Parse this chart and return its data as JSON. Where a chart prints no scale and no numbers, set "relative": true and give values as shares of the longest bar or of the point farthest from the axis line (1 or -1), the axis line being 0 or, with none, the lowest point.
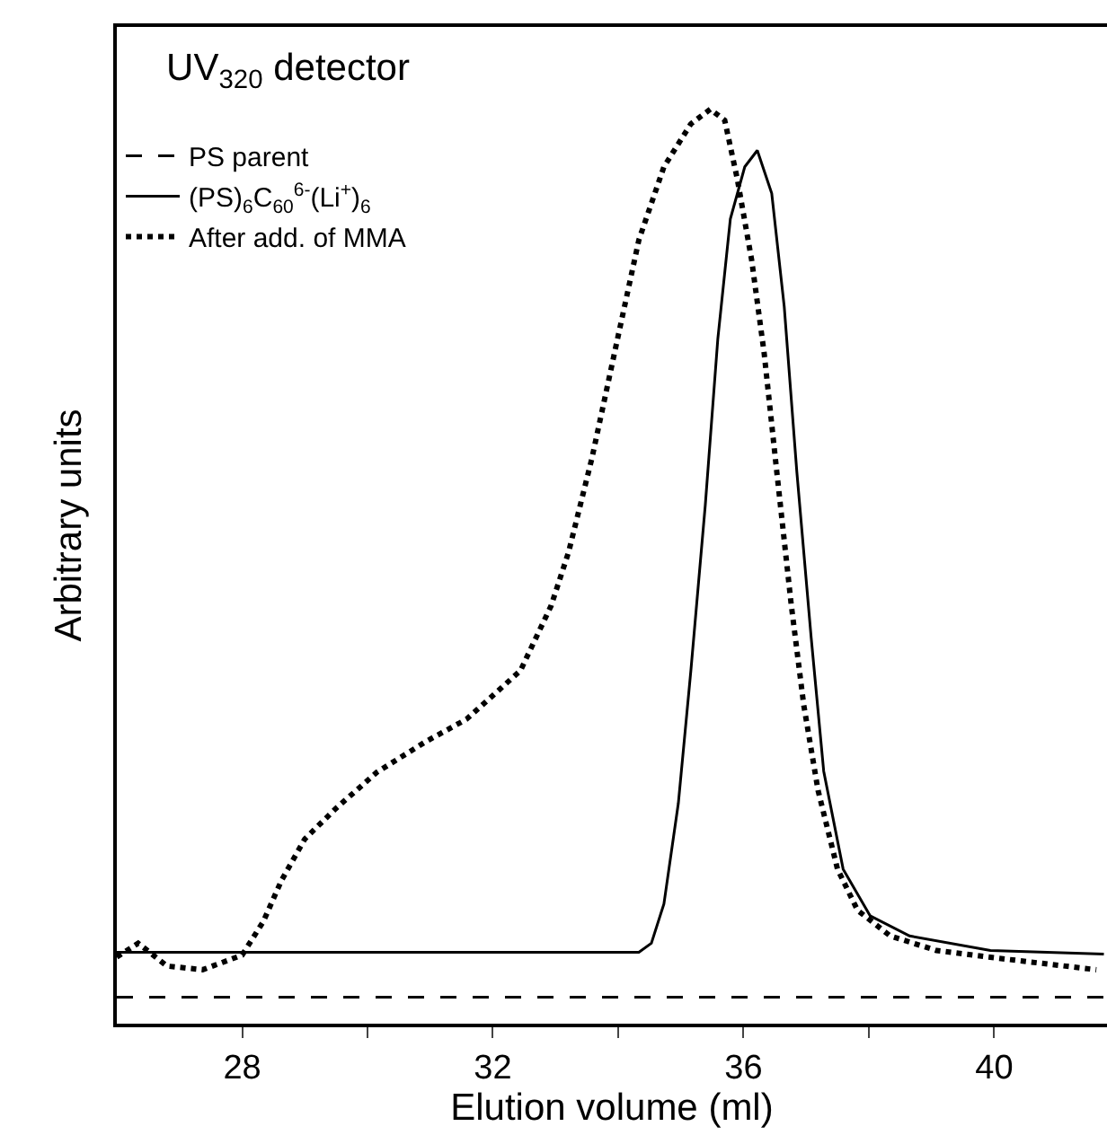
{
  "chart_data": {
    "type": "line",
    "title": "UV$_{320}$ detector",
    "xlabel": "Elution volume (ml)",
    "ylabel": "Arbitrary units",
    "relative": true,
    "xlim": [
      26,
      41.8
    ],
    "xticks": [
      28,
      {
        "value": 30,
        "label": null
      },
      32,
      {
        "value": 34,
        "label": null
      },
      36,
      {
        "value": 38,
        "label": null
      },
      40
    ],
    "legend": "top left",
    "series": [
      {
        "name": "PS parent",
        "color": "#000000",
        "line_style": "dashed",
        "x": [
          26,
          41.8
        ],
        "values": [
          0.029,
          0.029
        ]
      },
      {
        "name": "(PS)$_{6}$C$_{60}$$^{6-}$(Li$^{+}$)$_{6}$",
        "color": "#000000",
        "line_style": "solid",
        "x": [
          26,
          34.33,
          34.53,
          34.73,
          34.96,
          35.16,
          35.39,
          35.59,
          35.79,
          36.02,
          36.22,
          36.45,
          36.65,
          36.85,
          37.08,
          37.28,
          37.59,
          38.02,
          38.65,
          39.94,
          41.75
        ],
        "values": [
          0.078,
          0.078,
          0.088,
          0.131,
          0.241,
          0.386,
          0.567,
          0.749,
          0.88,
          0.937,
          0.955,
          0.908,
          0.784,
          0.604,
          0.422,
          0.276,
          0.169,
          0.118,
          0.096,
          0.08,
          0.076
        ]
      },
      {
        "name": "After add. of MMA",
        "color": "#000000",
        "line_style": "dotted",
        "x": [
          26,
          26.34,
          26.8,
          27.37,
          28,
          28.34,
          28.63,
          29,
          29.49,
          30.15,
          30.92,
          31.58,
          32.44,
          32.93,
          33.21,
          33.58,
          33.99,
          34.33,
          34.73,
          35.16,
          35.47,
          35.7,
          35.9,
          36.13,
          36.33,
          36.53,
          36.76,
          36.96,
          37.19,
          37.5,
          37.82,
          38.34,
          39.08,
          40.14,
          41.63
        ],
        "values": [
          0.073,
          0.088,
          0.063,
          0.059,
          0.075,
          0.112,
          0.157,
          0.202,
          0.235,
          0.275,
          0.308,
          0.333,
          0.386,
          0.457,
          0.516,
          0.618,
          0.749,
          0.857,
          0.937,
          0.984,
          1,
          0.988,
          0.924,
          0.835,
          0.733,
          0.604,
          0.459,
          0.349,
          0.255,
          0.169,
          0.124,
          0.096,
          0.08,
          0.071,
          0.059
        ]
      }
    ]
  }
}
